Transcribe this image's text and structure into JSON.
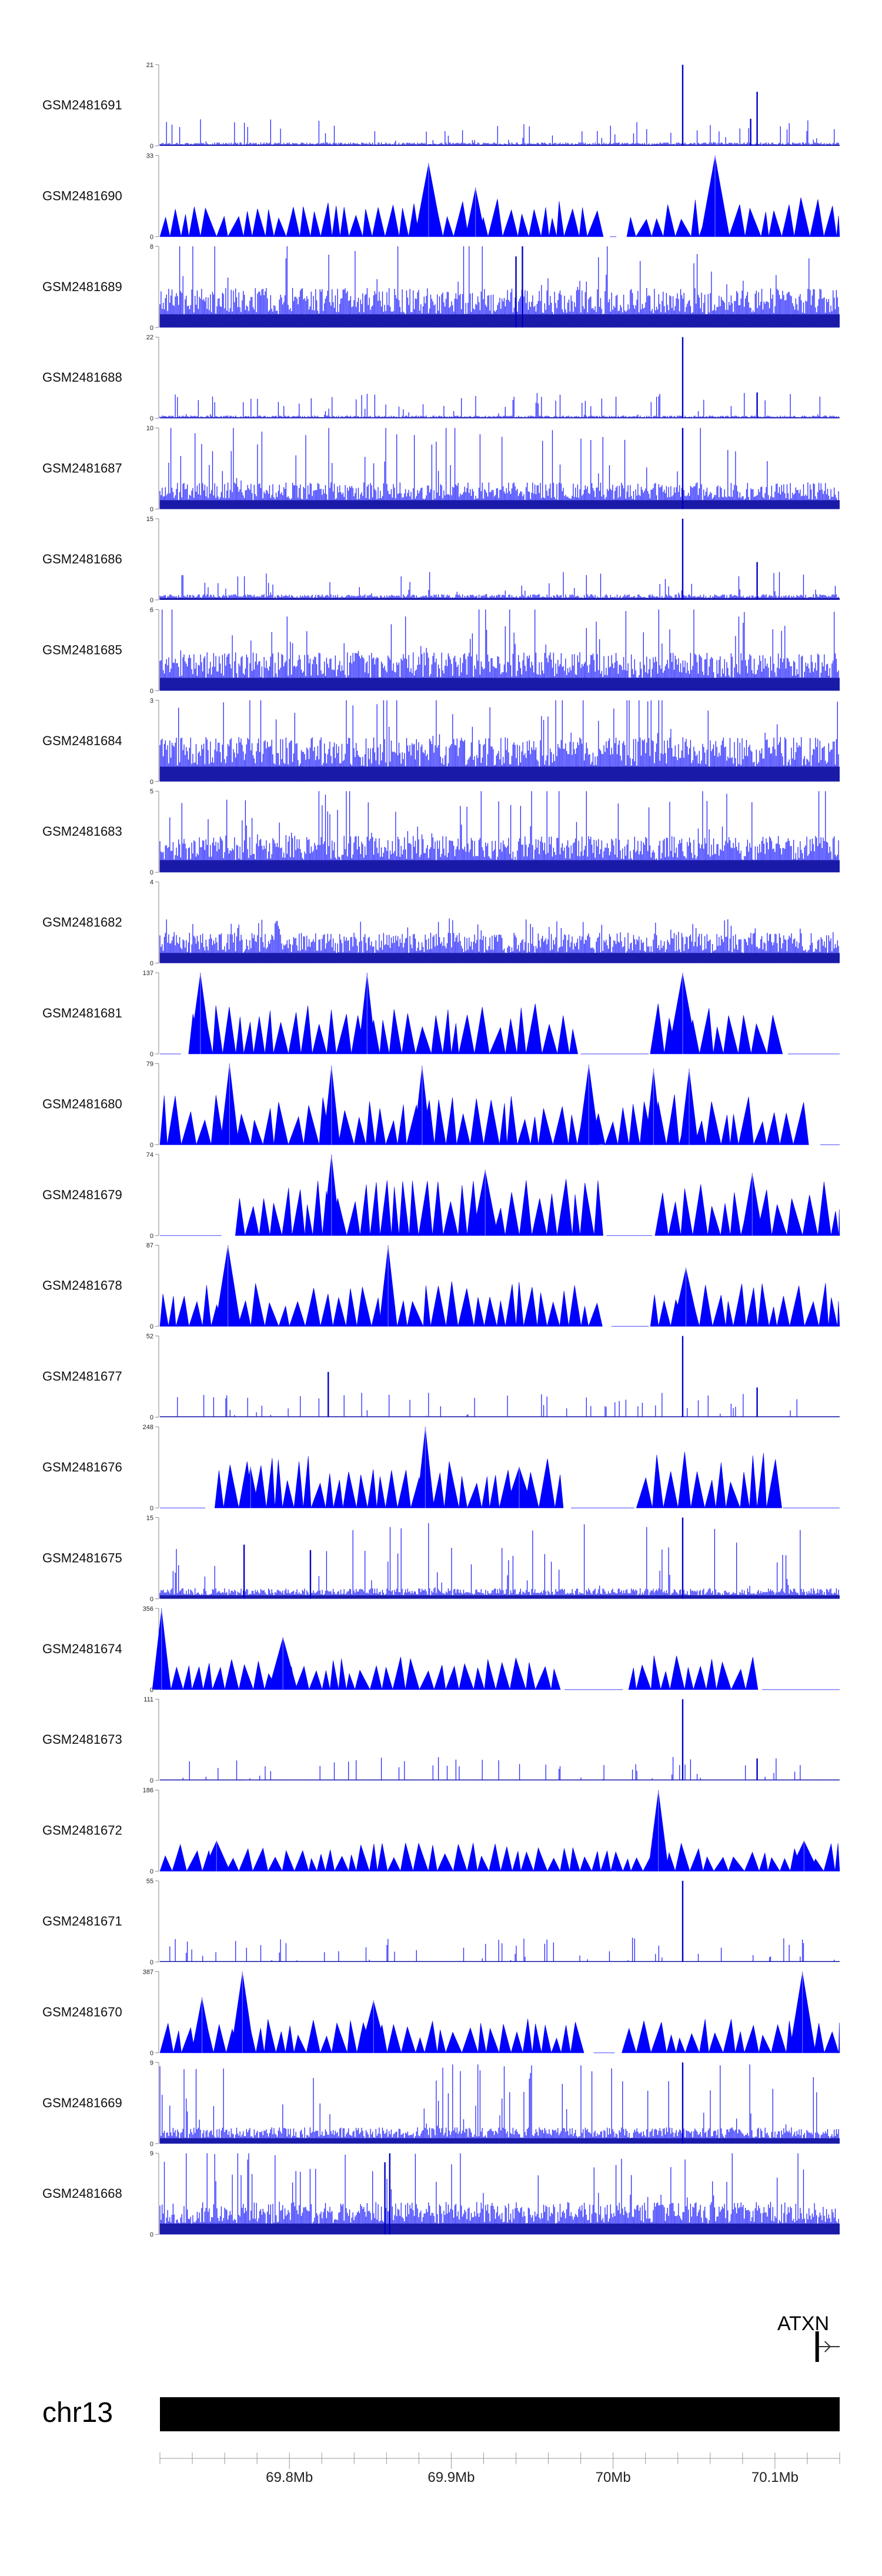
{
  "chart_data": {
    "type": "area",
    "title": "",
    "chromosome": "chr13",
    "x_range_mb": [
      69.72,
      70.14
    ],
    "x_ticks": [
      {
        "value": 69.8,
        "label": "69.8Mb"
      },
      {
        "value": 69.9,
        "label": "69.9Mb"
      },
      {
        "value": 70.0,
        "label": "70Mb"
      },
      {
        "value": 70.1,
        "label": "70.1Mb"
      }
    ],
    "gene": {
      "name": "ATXN",
      "start_mb": 70.125,
      "end_mb": 70.14,
      "strand": "+"
    },
    "tracks": [
      {
        "name": "GSM2481691",
        "ymin": 0,
        "ymax": 21,
        "style": "dense",
        "peaks": [
          {
            "x": 70.043,
            "y": 21
          },
          {
            "x": 70.089,
            "y": 14
          },
          {
            "x": 70.085,
            "y": 7
          }
        ],
        "base": 0.6
      },
      {
        "name": "GSM2481690",
        "ymin": 0,
        "ymax": 33,
        "style": "triangles",
        "gaps": [
          [
            69.998,
            70.002
          ]
        ],
        "peaks": [
          {
            "x": 70.063,
            "y": 33
          },
          {
            "x": 69.886,
            "y": 30
          },
          {
            "x": 69.915,
            "y": 20
          }
        ],
        "base": 0.35
      },
      {
        "name": "GSM2481689",
        "ymin": 0,
        "ymax": 8,
        "style": "dense",
        "peaks": [
          {
            "x": 69.944,
            "y": 8
          },
          {
            "x": 69.94,
            "y": 7
          }
        ],
        "base": 2.6
      },
      {
        "name": "GSM2481688",
        "ymin": 0,
        "ymax": 22,
        "style": "dense",
        "peaks": [
          {
            "x": 70.043,
            "y": 22
          },
          {
            "x": 70.089,
            "y": 7
          }
        ],
        "base": 0.5
      },
      {
        "name": "GSM2481687",
        "ymin": 0,
        "ymax": 10,
        "style": "dense",
        "peaks": [
          {
            "x": 70.043,
            "y": 10
          }
        ],
        "base": 2.2
      },
      {
        "name": "GSM2481686",
        "ymin": 0,
        "ymax": 15,
        "style": "dense",
        "peaks": [
          {
            "x": 70.043,
            "y": 15
          },
          {
            "x": 70.089,
            "y": 7
          }
        ],
        "base": 0.7
      },
      {
        "name": "GSM2481685",
        "ymin": 0,
        "ymax": 6,
        "style": "dense",
        "peaks": [],
        "base": 1.9
      },
      {
        "name": "GSM2481684",
        "ymin": 0,
        "ymax": 3,
        "style": "dense",
        "peaks": [],
        "base": 1.1
      },
      {
        "name": "GSM2481683",
        "ymin": 0,
        "ymax": 5,
        "style": "dense",
        "peaks": [],
        "base": 1.5
      },
      {
        "name": "GSM2481682",
        "ymin": 0,
        "ymax": 4,
        "style": "dense",
        "peaks": [],
        "base": 1.0
      },
      {
        "name": "GSM2481681",
        "ymin": 0,
        "ymax": 137,
        "style": "triangles",
        "gaps": [
          [
            69.72,
            69.733
          ],
          [
            69.98,
            70.022
          ],
          [
            70.108,
            70.14
          ]
        ],
        "peaks": [
          {
            "x": 69.745,
            "y": 137
          },
          {
            "x": 69.848,
            "y": 137
          },
          {
            "x": 70.043,
            "y": 137
          }
        ],
        "base": 0.45
      },
      {
        "name": "GSM2481680",
        "ymin": 0,
        "ymax": 79,
        "style": "triangles",
        "gaps": [
          [
            69.989,
            69.994
          ],
          [
            70.128,
            70.14
          ]
        ],
        "peaks": [
          {
            "x": 69.763,
            "y": 79
          },
          {
            "x": 69.826,
            "y": 77
          },
          {
            "x": 69.882,
            "y": 77
          },
          {
            "x": 69.985,
            "y": 78
          },
          {
            "x": 70.025,
            "y": 74
          },
          {
            "x": 70.047,
            "y": 74
          }
        ],
        "base": 0.45
      },
      {
        "name": "GSM2481679",
        "ymin": 0,
        "ymax": 74,
        "style": "triangles",
        "gaps": [
          [
            69.72,
            69.758
          ],
          [
            69.996,
            70.024
          ]
        ],
        "peaks": [
          {
            "x": 69.826,
            "y": 74
          },
          {
            "x": 69.921,
            "y": 60
          },
          {
            "x": 70.086,
            "y": 57
          }
        ],
        "base": 0.5
      },
      {
        "name": "GSM2481678",
        "ymin": 0,
        "ymax": 87,
        "style": "triangles",
        "gaps": [
          [
            69.999,
            70.022
          ]
        ],
        "peaks": [
          {
            "x": 69.762,
            "y": 87
          },
          {
            "x": 69.861,
            "y": 87
          },
          {
            "x": 70.045,
            "y": 63
          }
        ],
        "base": 0.4
      },
      {
        "name": "GSM2481677",
        "ymin": 0,
        "ymax": 52,
        "style": "dense",
        "peaks": [
          {
            "x": 70.043,
            "y": 52
          },
          {
            "x": 69.824,
            "y": 29
          },
          {
            "x": 70.089,
            "y": 19
          }
        ],
        "base": 0.2
      },
      {
        "name": "GSM2481676",
        "ymin": 0,
        "ymax": 248,
        "style": "triangles",
        "gaps": [
          [
            69.72,
            69.748
          ],
          [
            69.974,
            70.013
          ],
          [
            70.105,
            70.14
          ]
        ],
        "peaks": [
          {
            "x": 69.884,
            "y": 248
          },
          {
            "x": 69.776,
            "y": 126
          },
          {
            "x": 69.942,
            "y": 126
          }
        ],
        "base": 0.5
      },
      {
        "name": "GSM2481675",
        "ymin": 0,
        "ymax": 15,
        "style": "dense",
        "peaks": [
          {
            "x": 70.043,
            "y": 15
          },
          {
            "x": 69.772,
            "y": 10
          },
          {
            "x": 69.813,
            "y": 9
          }
        ],
        "base": 1.3
      },
      {
        "name": "GSM2481674",
        "ymin": 0,
        "ymax": 356,
        "style": "triangles",
        "gaps": [
          [
            69.97,
            70.006
          ],
          [
            70.092,
            70.14
          ]
        ],
        "peaks": [
          {
            "x": 69.721,
            "y": 356
          },
          {
            "x": 69.796,
            "y": 230
          }
        ],
        "base": 0.3
      },
      {
        "name": "GSM2481673",
        "ymin": 0,
        "ymax": 111,
        "style": "dense",
        "peaks": [
          {
            "x": 70.043,
            "y": 111
          },
          {
            "x": 70.089,
            "y": 30
          }
        ],
        "base": 0.08
      },
      {
        "name": "GSM2481672",
        "ymin": 0,
        "ymax": 186,
        "style": "triangles",
        "gaps": [
          [
            69.999,
            70.002
          ]
        ],
        "peaks": [
          {
            "x": 70.028,
            "y": 186
          },
          {
            "x": 69.755,
            "y": 70
          },
          {
            "x": 70.118,
            "y": 70
          }
        ],
        "base": 0.25
      },
      {
        "name": "GSM2481671",
        "ymin": 0,
        "ymax": 55,
        "style": "dense",
        "peaks": [
          {
            "x": 70.043,
            "y": 55
          }
        ],
        "base": 0.2
      },
      {
        "name": "GSM2481670",
        "ymin": 0,
        "ymax": 387,
        "style": "triangles",
        "gaps": [
          [
            69.988,
            70.001
          ]
        ],
        "peaks": [
          {
            "x": 70.117,
            "y": 387
          },
          {
            "x": 69.771,
            "y": 387
          },
          {
            "x": 69.746,
            "y": 265
          },
          {
            "x": 69.852,
            "y": 250
          }
        ],
        "base": 0.3
      },
      {
        "name": "GSM2481669",
        "ymin": 0,
        "ymax": 9,
        "style": "dense",
        "peaks": [
          {
            "x": 70.043,
            "y": 9
          }
        ],
        "base": 1.2
      },
      {
        "name": "GSM2481668",
        "ymin": 0,
        "ymax": 9,
        "style": "dense",
        "peaks": [
          {
            "x": 69.862,
            "y": 9
          },
          {
            "x": 69.859,
            "y": 8
          }
        ],
        "base": 2.4
      }
    ]
  }
}
